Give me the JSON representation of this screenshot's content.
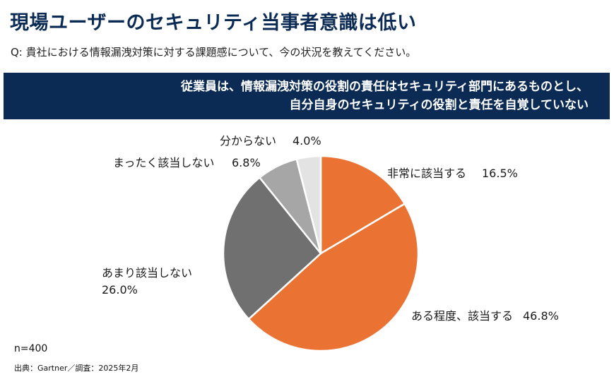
{
  "title": "現場ユーザーのセキュリティ当事者意識は低い",
  "question": "Q: 貴社における情報漏洩対策に対する課題感について、今の状況を教えてください。",
  "banner": {
    "line1": "従業員は、情報漏洩対策の役割の責任はセキュリティ部門にあるものとし、",
    "line2": "自分自身のセキュリティの役割と責任を自覚していない"
  },
  "n_label": "n=400",
  "source": "出典：Gartner／調査：2025年2月",
  "chart_data": {
    "type": "pie",
    "start_angle_deg": 0,
    "direction": "clockwise",
    "slices": [
      {
        "label": "非常に該当する",
        "value": 16.5,
        "value_text": "16.5%",
        "color": "#ea7232"
      },
      {
        "label": "ある程度、該当する",
        "value": 46.8,
        "value_text": "46.8%",
        "color": "#ea7232"
      },
      {
        "label": "あまり該当しない",
        "value": 26.0,
        "value_text": "26.0%",
        "color": "#707070"
      },
      {
        "label": "まったく該当しない",
        "value": 6.8,
        "value_text": "6.8%",
        "color": "#a6a6a6"
      },
      {
        "label": "分からない",
        "value": 4.0,
        "value_text": "4.0%",
        "color": "#e3e3e3"
      }
    ]
  }
}
